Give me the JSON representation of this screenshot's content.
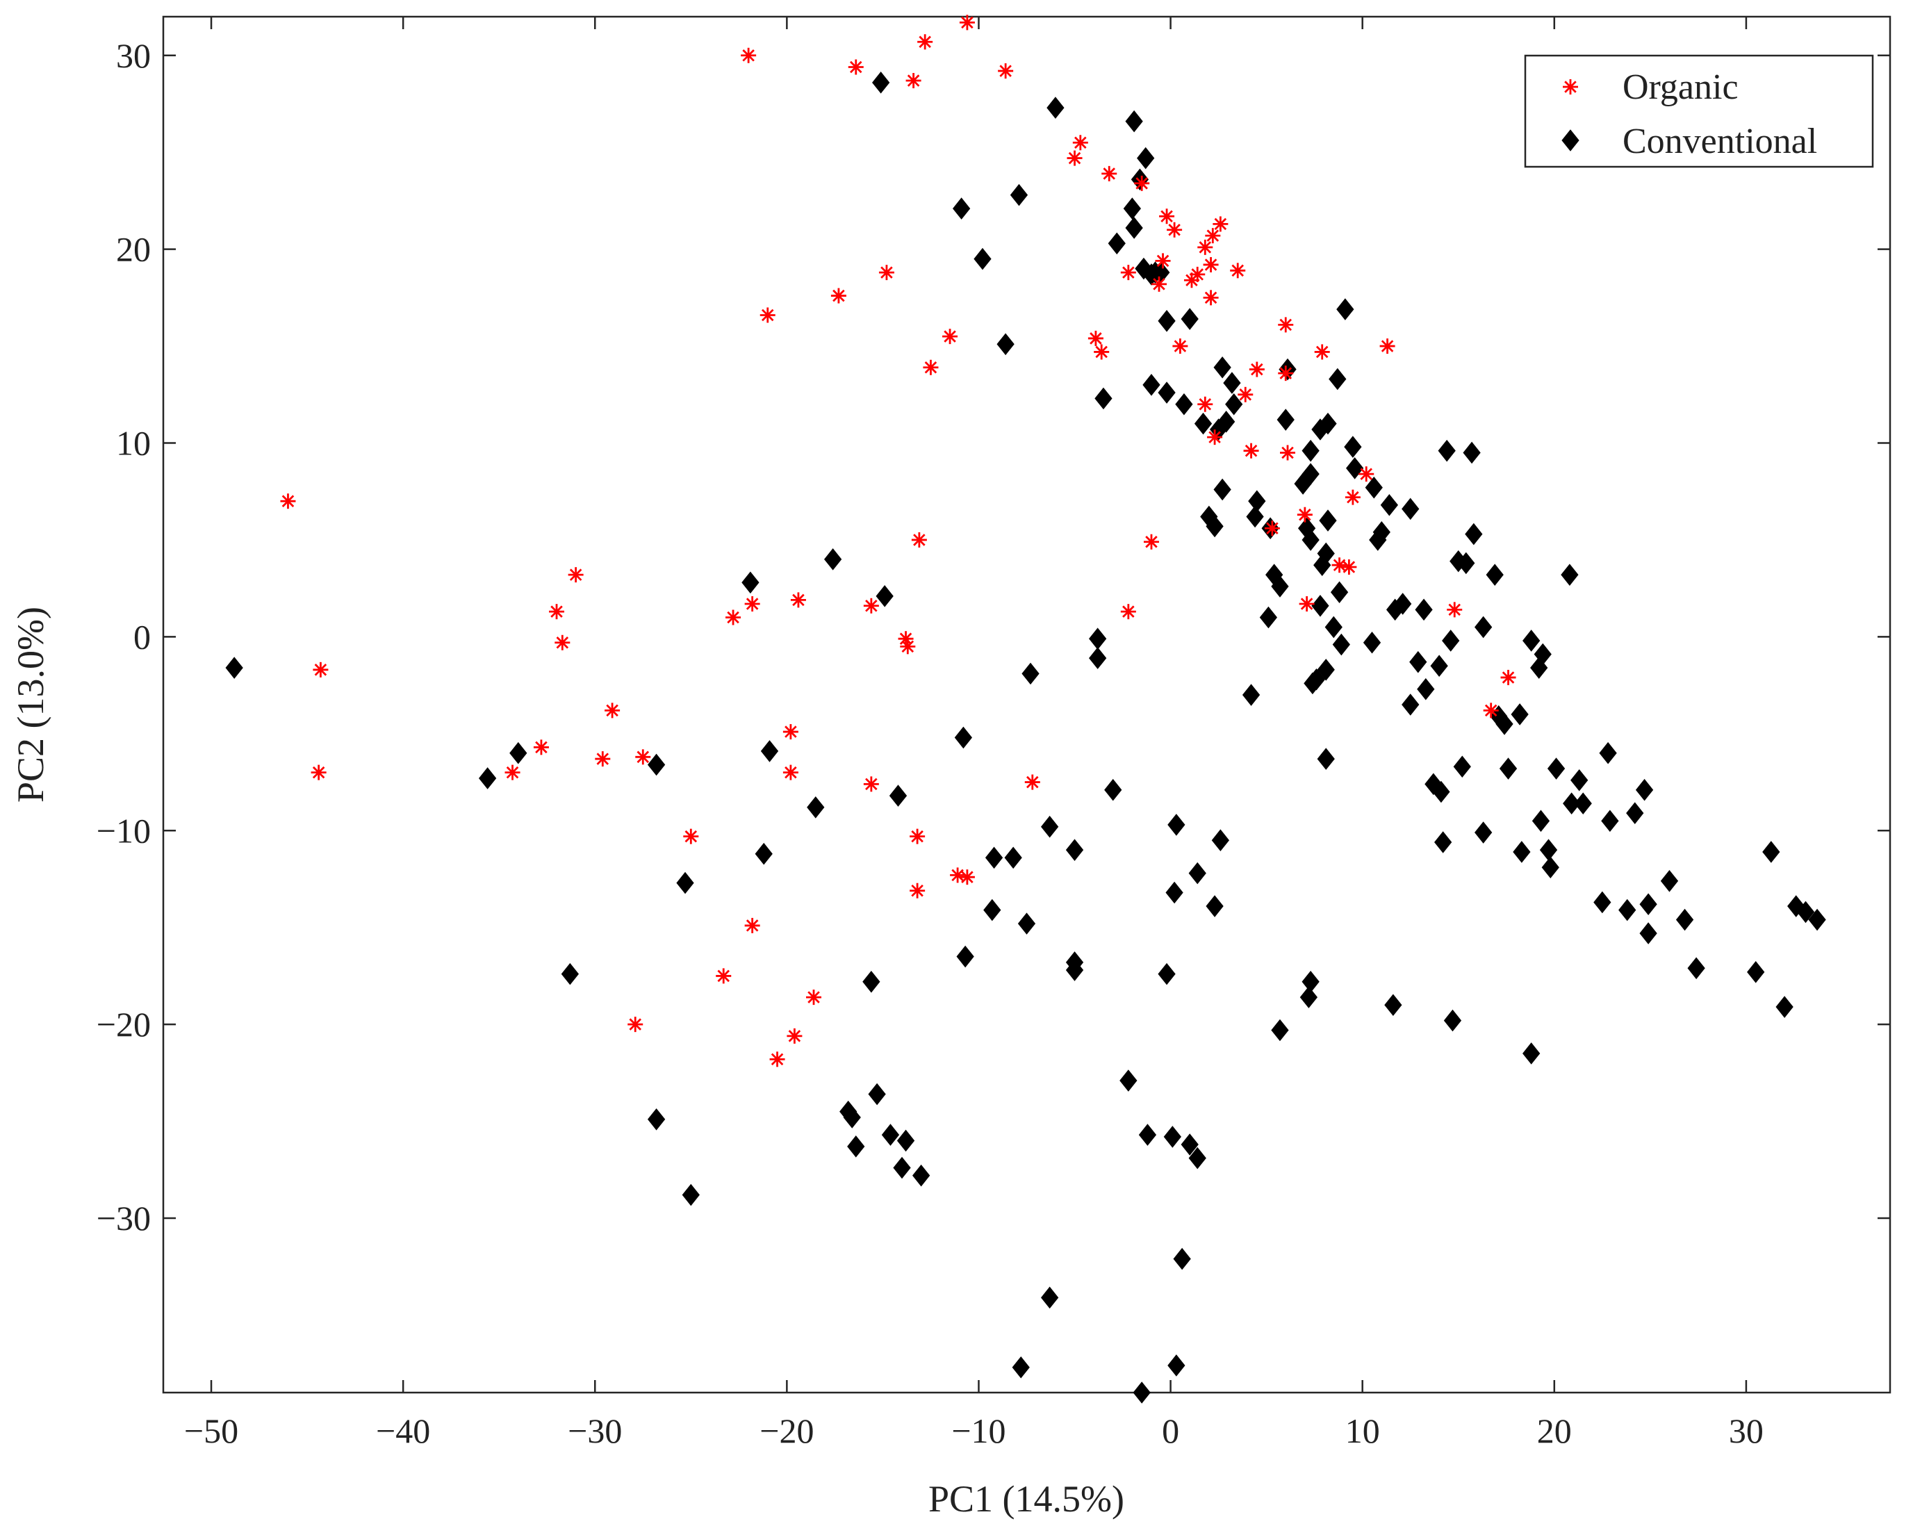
{
  "chart_data": {
    "type": "scatter",
    "xlabel": "PC1 (14.5%)",
    "ylabel": "PC2 (13.0%)",
    "xlim": [
      -52.5,
      37.5
    ],
    "ylim": [
      -39,
      32
    ],
    "xticks": [
      -50,
      -40,
      -30,
      -20,
      -10,
      0,
      10,
      20,
      30
    ],
    "yticks": [
      -30,
      -20,
      -10,
      0,
      10,
      20,
      30
    ],
    "legend_position": "top-right",
    "series": [
      {
        "name": "Organic",
        "marker": "asterisk",
        "color": "#ff0000",
        "points": [
          [
            -46,
            7
          ],
          [
            -44.3,
            -1.7
          ],
          [
            -44.4,
            -7
          ],
          [
            -34.3,
            -7
          ],
          [
            -32.8,
            -5.7
          ],
          [
            -32,
            1.3
          ],
          [
            -31.7,
            -0.3
          ],
          [
            -31,
            3.2
          ],
          [
            -29.6,
            -6.3
          ],
          [
            -29.1,
            -3.8
          ],
          [
            -27.9,
            -20
          ],
          [
            -27.5,
            -6.2
          ],
          [
            -25,
            -10.3
          ],
          [
            -23.3,
            -17.5
          ],
          [
            -22.8,
            1
          ],
          [
            -22,
            30
          ],
          [
            -21.8,
            1.7
          ],
          [
            -21.8,
            -14.9
          ],
          [
            -21,
            16.6
          ],
          [
            -20.5,
            -21.8
          ],
          [
            -19.8,
            -4.9
          ],
          [
            -19.8,
            -7
          ],
          [
            -19.6,
            -20.6
          ],
          [
            -19.4,
            1.9
          ],
          [
            -18.6,
            -18.6
          ],
          [
            -17.3,
            17.6
          ],
          [
            -16.4,
            29.4
          ],
          [
            -15.6,
            1.6
          ],
          [
            -15.6,
            -7.6
          ],
          [
            -14.8,
            18.8
          ],
          [
            -13.8,
            -0.1
          ],
          [
            -13.7,
            -0.5
          ],
          [
            -13.4,
            28.7
          ],
          [
            -13.2,
            -10.3
          ],
          [
            -13.2,
            -13.1
          ],
          [
            -13.1,
            5
          ],
          [
            -12.8,
            30.7
          ],
          [
            -12.5,
            13.9
          ],
          [
            -11.5,
            15.5
          ],
          [
            -11.1,
            -12.3
          ],
          [
            -10.6,
            -12.4
          ],
          [
            -10.6,
            31.7
          ],
          [
            -8.6,
            29.2
          ],
          [
            -7.2,
            -7.5
          ],
          [
            -5,
            24.7
          ],
          [
            -4.7,
            25.5
          ],
          [
            -3.9,
            15.4
          ],
          [
            -3.6,
            14.7
          ],
          [
            -3.2,
            23.9
          ],
          [
            -2.2,
            1.3
          ],
          [
            -2.2,
            18.8
          ],
          [
            -1,
            4.9
          ],
          [
            -0.6,
            18.2
          ],
          [
            -0.4,
            19.4
          ],
          [
            -1.5,
            23.4
          ],
          [
            -0.2,
            21.7
          ],
          [
            0.2,
            21
          ],
          [
            0.5,
            15
          ],
          [
            1.1,
            18.4
          ],
          [
            1.4,
            18.7
          ],
          [
            1.8,
            12
          ],
          [
            1.8,
            20.1
          ],
          [
            2.1,
            17.5
          ],
          [
            2.1,
            19.2
          ],
          [
            2.2,
            20.7
          ],
          [
            2.3,
            10.3
          ],
          [
            2.6,
            21.3
          ],
          [
            3.5,
            18.9
          ],
          [
            3.9,
            12.5
          ],
          [
            4.2,
            9.6
          ],
          [
            4.5,
            13.8
          ],
          [
            5.3,
            5.6
          ],
          [
            6,
            16.1
          ],
          [
            6,
            13.6
          ],
          [
            6.1,
            9.5
          ],
          [
            7,
            6.3
          ],
          [
            7.1,
            1.7
          ],
          [
            7.9,
            14.7
          ],
          [
            8.8,
            3.7
          ],
          [
            9.3,
            3.6
          ],
          [
            9.5,
            7.2
          ],
          [
            10.2,
            8.4
          ],
          [
            11.3,
            15
          ],
          [
            14.8,
            1.4
          ],
          [
            16.7,
            -3.8
          ],
          [
            17.6,
            -2.1
          ]
        ]
      },
      {
        "name": "Conventional",
        "marker": "diamond",
        "color": "#000000",
        "points": [
          [
            -48.8,
            -1.6
          ],
          [
            -35.6,
            -7.3
          ],
          [
            -34,
            -6
          ],
          [
            -31.3,
            -17.4
          ],
          [
            -26.8,
            -6.6
          ],
          [
            -26.8,
            -24.9
          ],
          [
            -25.3,
            -12.7
          ],
          [
            -25,
            -28.8
          ],
          [
            -21.9,
            2.8
          ],
          [
            -21.2,
            -11.2
          ],
          [
            -20.9,
            -5.9
          ],
          [
            -18.5,
            -8.8
          ],
          [
            -17.6,
            4
          ],
          [
            -16.8,
            -24.5
          ],
          [
            -16.6,
            -24.8
          ],
          [
            -16.4,
            -26.3
          ],
          [
            -15.6,
            -17.8
          ],
          [
            -15.3,
            -23.6
          ],
          [
            -15.1,
            28.6
          ],
          [
            -14.9,
            2.1
          ],
          [
            -14.6,
            -25.7
          ],
          [
            -14.2,
            -8.2
          ],
          [
            -14,
            -27.4
          ],
          [
            -13.8,
            -26
          ],
          [
            -13,
            -27.8
          ],
          [
            -10.9,
            22.1
          ],
          [
            -10.8,
            -5.2
          ],
          [
            -10.7,
            -16.5
          ],
          [
            -9.8,
            19.5
          ],
          [
            -9.3,
            -14.1
          ],
          [
            -9.2,
            -11.4
          ],
          [
            -8.6,
            15.1
          ],
          [
            -8.2,
            -11.4
          ],
          [
            -7.9,
            22.8
          ],
          [
            -7.8,
            -37.7
          ],
          [
            -7.5,
            -14.8
          ],
          [
            -7.3,
            -1.9
          ],
          [
            -6.3,
            -9.8
          ],
          [
            -6.3,
            -34.1
          ],
          [
            -6,
            27.3
          ],
          [
            -5,
            -11
          ],
          [
            -5,
            -16.8
          ],
          [
            -5,
            -17.2
          ],
          [
            -3.8,
            -0.1
          ],
          [
            -3.8,
            -1.1
          ],
          [
            -3.5,
            12.3
          ],
          [
            -3,
            -7.9
          ],
          [
            -2.8,
            20.3
          ],
          [
            -2.2,
            -22.9
          ],
          [
            -2,
            22.1
          ],
          [
            -1.9,
            26.6
          ],
          [
            -1.9,
            21.1
          ],
          [
            -1.6,
            23.6
          ],
          [
            -1.5,
            -39
          ],
          [
            -1.4,
            19
          ],
          [
            -1.3,
            24.7
          ],
          [
            -1.2,
            -25.7
          ],
          [
            -1,
            18.7
          ],
          [
            -1,
            13
          ],
          [
            -0.8,
            18.8
          ],
          [
            -0.5,
            18.8
          ],
          [
            -0.2,
            12.6
          ],
          [
            -0.2,
            16.3
          ],
          [
            -0.2,
            -17.4
          ],
          [
            0.1,
            -25.8
          ],
          [
            0.2,
            -13.2
          ],
          [
            0.3,
            -9.7
          ],
          [
            0.3,
            -37.6
          ],
          [
            0.6,
            -32.1
          ],
          [
            0.7,
            12
          ],
          [
            1,
            16.4
          ],
          [
            1,
            -26.2
          ],
          [
            1.4,
            -12.2
          ],
          [
            1.4,
            -26.9
          ],
          [
            1.7,
            11
          ],
          [
            2,
            6.2
          ],
          [
            2.3,
            5.7
          ],
          [
            2.3,
            -13.9
          ],
          [
            2.5,
            10.7
          ],
          [
            2.6,
            -10.5
          ],
          [
            2.7,
            7.6
          ],
          [
            2.7,
            13.9
          ],
          [
            2.9,
            11.1
          ],
          [
            3.2,
            13.1
          ],
          [
            3.3,
            12
          ],
          [
            4.2,
            -3
          ],
          [
            4.4,
            6.2
          ],
          [
            4.5,
            7
          ],
          [
            5.1,
            1
          ],
          [
            5.2,
            5.6
          ],
          [
            5.4,
            3.2
          ],
          [
            5.7,
            2.6
          ],
          [
            5.7,
            -20.3
          ],
          [
            6,
            11.2
          ],
          [
            6.1,
            13.8
          ],
          [
            6.9,
            7.9
          ],
          [
            7.1,
            5.6
          ],
          [
            7.2,
            -18.6
          ],
          [
            7.3,
            -17.8
          ],
          [
            7.3,
            8.4
          ],
          [
            7.3,
            9.6
          ],
          [
            7.3,
            5
          ],
          [
            7.4,
            -2.4
          ],
          [
            7.6,
            -2.2
          ],
          [
            7.8,
            1.6
          ],
          [
            7.8,
            10.7
          ],
          [
            7.9,
            3.7
          ],
          [
            8.1,
            4.3
          ],
          [
            8.1,
            -1.7
          ],
          [
            8.1,
            -6.3
          ],
          [
            8.2,
            6
          ],
          [
            8.2,
            11
          ],
          [
            8.5,
            0.5
          ],
          [
            8.7,
            13.3
          ],
          [
            8.8,
            2.3
          ],
          [
            8.9,
            -0.4
          ],
          [
            9.1,
            16.9
          ],
          [
            9.5,
            9.8
          ],
          [
            9.6,
            8.7
          ],
          [
            10.5,
            -0.3
          ],
          [
            10.6,
            7.7
          ],
          [
            10.8,
            5
          ],
          [
            11,
            5.4
          ],
          [
            11.4,
            6.8
          ],
          [
            11.6,
            -19
          ],
          [
            11.7,
            1.4
          ],
          [
            12.1,
            1.7
          ],
          [
            12.5,
            6.6
          ],
          [
            12.5,
            -3.5
          ],
          [
            12.9,
            -1.3
          ],
          [
            13.2,
            1.4
          ],
          [
            13.3,
            -2.7
          ],
          [
            13.7,
            -7.6
          ],
          [
            14,
            -1.5
          ],
          [
            14.1,
            -8
          ],
          [
            14.2,
            -10.6
          ],
          [
            14.4,
            9.6
          ],
          [
            14.6,
            -0.2
          ],
          [
            14.7,
            -19.8
          ],
          [
            15,
            3.9
          ],
          [
            15.2,
            -6.7
          ],
          [
            15.4,
            3.8
          ],
          [
            15.7,
            9.5
          ],
          [
            15.8,
            5.3
          ],
          [
            16.3,
            -10.1
          ],
          [
            16.3,
            0.5
          ],
          [
            16.9,
            3.2
          ],
          [
            17.1,
            -4.1
          ],
          [
            17.4,
            -4.5
          ],
          [
            17.6,
            -6.8
          ],
          [
            18.2,
            -4
          ],
          [
            18.3,
            -11.1
          ],
          [
            18.8,
            -0.2
          ],
          [
            18.8,
            -21.5
          ],
          [
            19.2,
            -1.6
          ],
          [
            19.3,
            -9.5
          ],
          [
            19.4,
            -0.9
          ],
          [
            19.7,
            -11
          ],
          [
            19.8,
            -11.9
          ],
          [
            20.1,
            -6.8
          ],
          [
            20.8,
            3.2
          ],
          [
            20.9,
            -8.6
          ],
          [
            21.3,
            -7.4
          ],
          [
            21.5,
            -8.6
          ],
          [
            22.5,
            -13.7
          ],
          [
            22.8,
            -6
          ],
          [
            22.9,
            -9.5
          ],
          [
            23.8,
            -14.1
          ],
          [
            24.2,
            -9.1
          ],
          [
            24.7,
            -7.9
          ],
          [
            24.9,
            -13.8
          ],
          [
            24.9,
            -15.3
          ],
          [
            26,
            -12.6
          ],
          [
            26.8,
            -14.6
          ],
          [
            27.4,
            -17.1
          ],
          [
            30.5,
            -17.3
          ],
          [
            31.3,
            -11.1
          ],
          [
            32,
            -19.1
          ],
          [
            32.6,
            -13.9
          ],
          [
            33.1,
            -14.2
          ],
          [
            33.7,
            -14.6
          ]
        ]
      }
    ]
  }
}
